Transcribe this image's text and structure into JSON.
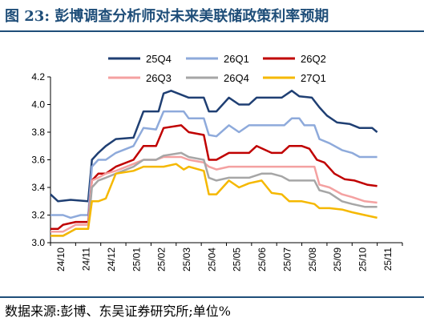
{
  "figure": {
    "title": "图 23:  彭博调查分析师对未来美联储政策利率预期",
    "source": "数据来源:彭博、东吴证券研究所;单位%"
  },
  "chart_data": {
    "type": "line",
    "ylim": [
      3.0,
      4.2
    ],
    "yticks": [
      3.0,
      3.2,
      3.4,
      3.6,
      3.8,
      4.0,
      4.2
    ],
    "x_tick_labels": [
      "24/10",
      "24/11",
      "24/12",
      "25/01",
      "25/02",
      "25/03",
      "25/04",
      "25/05",
      "25/06",
      "25/07",
      "25/08",
      "25/09",
      "25/10",
      "25/11"
    ],
    "x_range": [
      0,
      14
    ],
    "grid": false,
    "legend_position": "top",
    "series": [
      {
        "name": "25Q4",
        "color": "#1f3f73",
        "points": [
          [
            0,
            3.35
          ],
          [
            0.3,
            3.3
          ],
          [
            0.8,
            3.31
          ],
          [
            1.5,
            3.3
          ],
          [
            1.65,
            3.6
          ],
          [
            1.9,
            3.65
          ],
          [
            2.2,
            3.7
          ],
          [
            2.6,
            3.75
          ],
          [
            3.3,
            3.76
          ],
          [
            3.7,
            3.95
          ],
          [
            4.3,
            3.95
          ],
          [
            4.5,
            4.08
          ],
          [
            4.8,
            4.1
          ],
          [
            5.5,
            4.05
          ],
          [
            6.1,
            4.05
          ],
          [
            6.3,
            3.95
          ],
          [
            6.6,
            3.95
          ],
          [
            7.1,
            4.05
          ],
          [
            7.5,
            4.0
          ],
          [
            7.9,
            4.0
          ],
          [
            8.2,
            4.05
          ],
          [
            8.8,
            4.05
          ],
          [
            9.2,
            4.05
          ],
          [
            9.6,
            4.1
          ],
          [
            9.9,
            4.06
          ],
          [
            10.4,
            4.05
          ],
          [
            10.7,
            3.98
          ],
          [
            11.0,
            3.92
          ],
          [
            11.4,
            3.87
          ],
          [
            11.9,
            3.86
          ],
          [
            12.3,
            3.83
          ],
          [
            12.8,
            3.83
          ],
          [
            13.0,
            3.8
          ]
        ]
      },
      {
        "name": "26Q1",
        "color": "#8eaadb",
        "points": [
          [
            0,
            3.2
          ],
          [
            0.5,
            3.2
          ],
          [
            0.8,
            3.18
          ],
          [
            1.2,
            3.2
          ],
          [
            1.5,
            3.2
          ],
          [
            1.65,
            3.55
          ],
          [
            1.9,
            3.6
          ],
          [
            2.2,
            3.6
          ],
          [
            2.6,
            3.65
          ],
          [
            3.3,
            3.7
          ],
          [
            3.7,
            3.83
          ],
          [
            4.2,
            3.82
          ],
          [
            4.5,
            3.95
          ],
          [
            5.3,
            3.95
          ],
          [
            5.5,
            3.9
          ],
          [
            6.1,
            3.9
          ],
          [
            6.3,
            3.78
          ],
          [
            6.6,
            3.77
          ],
          [
            7.1,
            3.85
          ],
          [
            7.5,
            3.8
          ],
          [
            7.9,
            3.85
          ],
          [
            8.8,
            3.85
          ],
          [
            9.3,
            3.85
          ],
          [
            9.6,
            3.9
          ],
          [
            9.9,
            3.9
          ],
          [
            10.1,
            3.85
          ],
          [
            10.5,
            3.85
          ],
          [
            10.7,
            3.75
          ],
          [
            11.1,
            3.72
          ],
          [
            11.6,
            3.67
          ],
          [
            12.0,
            3.65
          ],
          [
            12.3,
            3.62
          ],
          [
            12.7,
            3.62
          ],
          [
            13.0,
            3.62
          ]
        ]
      },
      {
        "name": "26Q2",
        "color": "#c00000",
        "points": [
          [
            0,
            3.1
          ],
          [
            0.3,
            3.1
          ],
          [
            0.5,
            3.13
          ],
          [
            1.0,
            3.15
          ],
          [
            1.5,
            3.15
          ],
          [
            1.65,
            3.45
          ],
          [
            1.9,
            3.5
          ],
          [
            2.2,
            3.5
          ],
          [
            2.6,
            3.55
          ],
          [
            3.3,
            3.6
          ],
          [
            3.7,
            3.7
          ],
          [
            4.2,
            3.7
          ],
          [
            4.5,
            3.83
          ],
          [
            5.2,
            3.85
          ],
          [
            5.5,
            3.8
          ],
          [
            6.1,
            3.78
          ],
          [
            6.3,
            3.6
          ],
          [
            6.6,
            3.6
          ],
          [
            7.1,
            3.65
          ],
          [
            7.5,
            3.65
          ],
          [
            7.9,
            3.65
          ],
          [
            8.2,
            3.7
          ],
          [
            8.8,
            3.65
          ],
          [
            9.2,
            3.65
          ],
          [
            9.5,
            3.7
          ],
          [
            10.0,
            3.7
          ],
          [
            10.3,
            3.68
          ],
          [
            10.6,
            3.6
          ],
          [
            10.9,
            3.58
          ],
          [
            11.3,
            3.5
          ],
          [
            11.7,
            3.46
          ],
          [
            12.1,
            3.45
          ],
          [
            12.6,
            3.42
          ],
          [
            13.0,
            3.41
          ]
        ]
      },
      {
        "name": "26Q3",
        "color": "#f4a1a1",
        "points": [
          [
            0,
            3.08
          ],
          [
            0.5,
            3.08
          ],
          [
            1.0,
            3.13
          ],
          [
            1.5,
            3.13
          ],
          [
            1.65,
            3.45
          ],
          [
            1.9,
            3.47
          ],
          [
            2.2,
            3.5
          ],
          [
            2.6,
            3.52
          ],
          [
            3.3,
            3.57
          ],
          [
            3.7,
            3.6
          ],
          [
            4.2,
            3.6
          ],
          [
            4.5,
            3.62
          ],
          [
            5.2,
            3.62
          ],
          [
            5.5,
            3.6
          ],
          [
            6.1,
            3.58
          ],
          [
            6.3,
            3.55
          ],
          [
            6.6,
            3.53
          ],
          [
            7.1,
            3.55
          ],
          [
            7.9,
            3.55
          ],
          [
            8.8,
            3.55
          ],
          [
            9.2,
            3.55
          ],
          [
            9.5,
            3.55
          ],
          [
            10.1,
            3.55
          ],
          [
            10.5,
            3.55
          ],
          [
            10.7,
            3.42
          ],
          [
            11.1,
            3.4
          ],
          [
            11.6,
            3.35
          ],
          [
            12.0,
            3.33
          ],
          [
            12.5,
            3.3
          ],
          [
            13.0,
            3.29
          ]
        ]
      },
      {
        "name": "26Q4",
        "color": "#a6a6a6",
        "points": [
          [
            0,
            3.05
          ],
          [
            0.5,
            3.05
          ],
          [
            1.0,
            3.1
          ],
          [
            1.5,
            3.1
          ],
          [
            1.65,
            3.4
          ],
          [
            1.9,
            3.45
          ],
          [
            2.2,
            3.47
          ],
          [
            2.6,
            3.5
          ],
          [
            3.3,
            3.55
          ],
          [
            3.7,
            3.6
          ],
          [
            4.2,
            3.6
          ],
          [
            4.5,
            3.63
          ],
          [
            5.2,
            3.65
          ],
          [
            5.5,
            3.62
          ],
          [
            6.1,
            3.6
          ],
          [
            6.3,
            3.47
          ],
          [
            6.6,
            3.45
          ],
          [
            7.1,
            3.47
          ],
          [
            7.9,
            3.47
          ],
          [
            8.4,
            3.5
          ],
          [
            8.8,
            3.5
          ],
          [
            9.2,
            3.48
          ],
          [
            9.5,
            3.45
          ],
          [
            10.1,
            3.45
          ],
          [
            10.5,
            3.45
          ],
          [
            10.7,
            3.38
          ],
          [
            11.1,
            3.36
          ],
          [
            11.6,
            3.3
          ],
          [
            12.0,
            3.28
          ],
          [
            12.5,
            3.26
          ],
          [
            13.0,
            3.26
          ]
        ]
      },
      {
        "name": "27Q1",
        "color": "#f5b800",
        "points": [
          [
            0,
            3.05
          ],
          [
            0.5,
            3.05
          ],
          [
            1.0,
            3.1
          ],
          [
            1.5,
            3.1
          ],
          [
            1.65,
            3.3
          ],
          [
            1.9,
            3.3
          ],
          [
            2.2,
            3.32
          ],
          [
            2.6,
            3.5
          ],
          [
            3.3,
            3.52
          ],
          [
            3.7,
            3.55
          ],
          [
            4.2,
            3.55
          ],
          [
            4.5,
            3.55
          ],
          [
            5.0,
            3.57
          ],
          [
            5.3,
            3.53
          ],
          [
            5.5,
            3.55
          ],
          [
            6.1,
            3.52
          ],
          [
            6.3,
            3.35
          ],
          [
            6.6,
            3.35
          ],
          [
            7.1,
            3.45
          ],
          [
            7.5,
            3.4
          ],
          [
            7.9,
            3.43
          ],
          [
            8.4,
            3.45
          ],
          [
            8.8,
            3.36
          ],
          [
            9.2,
            3.35
          ],
          [
            9.5,
            3.3
          ],
          [
            10.0,
            3.3
          ],
          [
            10.5,
            3.28
          ],
          [
            10.7,
            3.25
          ],
          [
            11.1,
            3.25
          ],
          [
            11.6,
            3.24
          ],
          [
            12.0,
            3.22
          ],
          [
            12.5,
            3.2
          ],
          [
            13.0,
            3.18
          ]
        ]
      }
    ]
  }
}
